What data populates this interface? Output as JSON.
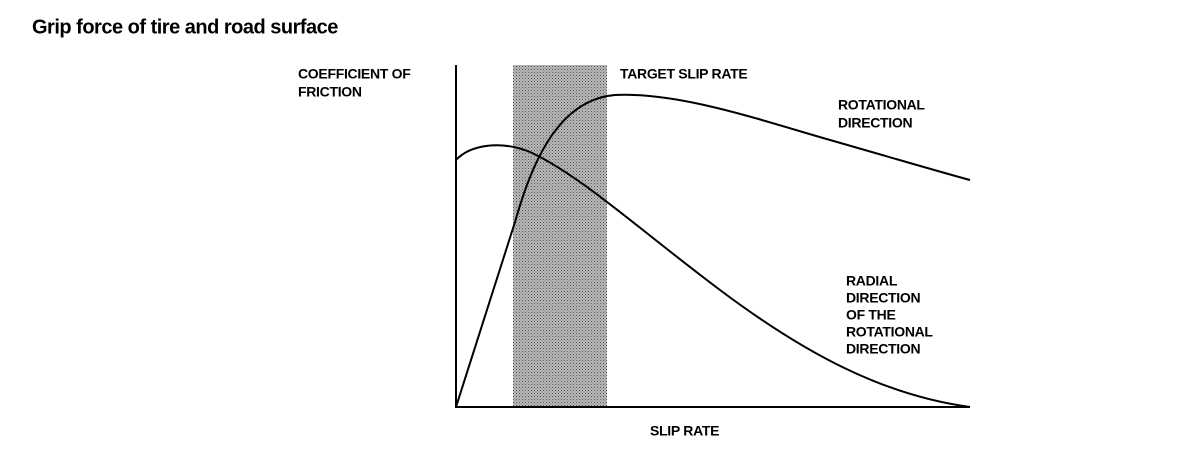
{
  "title": "Grip force of tire and road surface",
  "y_axis_label": [
    "COEFFICIENT OF",
    "FRICTION"
  ],
  "band_label": "TARGET SLIP RATE",
  "curves": [
    {
      "label": [
        "ROTATIONAL",
        "DIRECTION"
      ]
    },
    {
      "label": [
        "RADIAL",
        "DIRECTION",
        "OF THE",
        "ROTATIONAL",
        "DIRECTION"
      ]
    }
  ],
  "x_axis_label": "SLIP RATE"
}
